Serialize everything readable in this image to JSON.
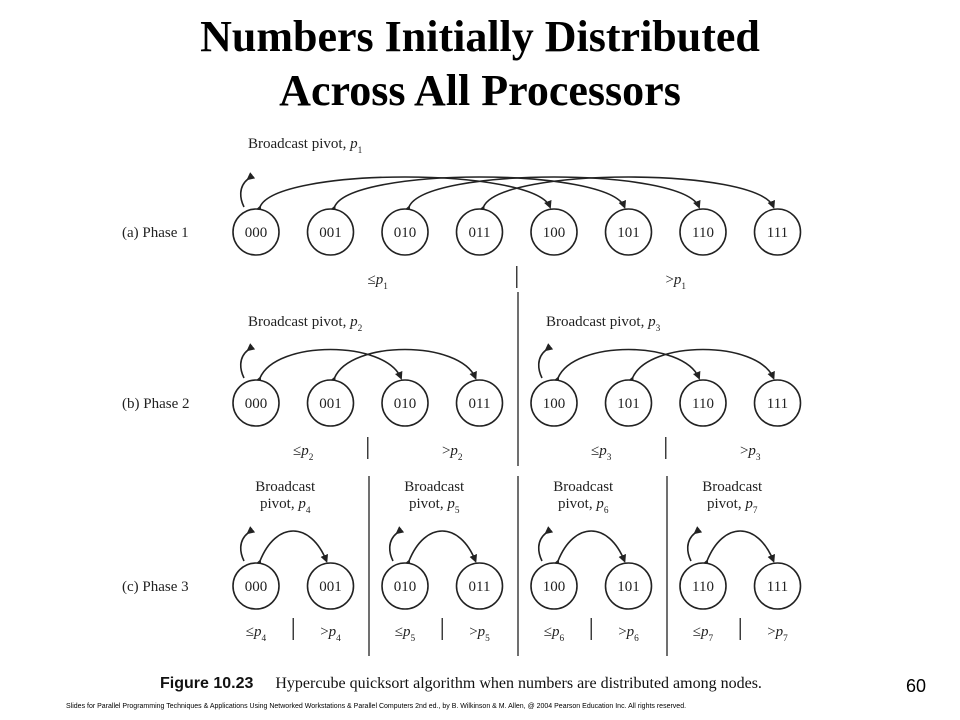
{
  "slide": {
    "title_line1": "Numbers Initially Distributed",
    "title_line2": "Across All Processors",
    "page_number": "60",
    "footer": "Slides for Parallel Programming Techniques & Applications Using Networked Workstations & Parallel Computers 2nd ed., by B. Wilkinson & M. Allen, @ 2004 Pearson Education Inc. All rights reserved."
  },
  "figure": {
    "label": "Figure 10.23",
    "caption": "Hypercube quicksort algorithm when numbers are distributed among nodes.",
    "phases": [
      {
        "label": "(a) Phase 1",
        "groups": [
          {
            "broadcast": "Broadcast pivot, p1",
            "nodes": [
              "000",
              "001",
              "010",
              "011",
              "100",
              "101",
              "110",
              "111"
            ],
            "pairs": [
              [
                0,
                4
              ],
              [
                1,
                5
              ],
              [
                2,
                6
              ],
              [
                3,
                7
              ]
            ],
            "le": "≤p1",
            "gt": ">p1"
          }
        ]
      },
      {
        "label": "(b) Phase 2",
        "groups": [
          {
            "broadcast": "Broadcast pivot, p2",
            "nodes": [
              "000",
              "001",
              "010",
              "011"
            ],
            "pairs": [
              [
                0,
                2
              ],
              [
                1,
                3
              ]
            ],
            "le": "≤p2",
            "gt": ">p2"
          },
          {
            "broadcast": "Broadcast pivot, p3",
            "nodes": [
              "100",
              "101",
              "110",
              "111"
            ],
            "pairs": [
              [
                0,
                2
              ],
              [
                1,
                3
              ]
            ],
            "le": "≤p3",
            "gt": ">p3"
          }
        ]
      },
      {
        "label": "(c) Phase 3",
        "groups": [
          {
            "broadcast": "Broadcast pivot, p4",
            "nodes": [
              "000",
              "001"
            ],
            "pairs": [
              [
                0,
                1
              ]
            ],
            "le": "≤p4",
            "gt": ">p4"
          },
          {
            "broadcast": "Broadcast pivot, p5",
            "nodes": [
              "010",
              "011"
            ],
            "pairs": [
              [
                0,
                1
              ]
            ],
            "le": "≤p5",
            "gt": ">p5"
          },
          {
            "broadcast": "Broadcast pivot, p6",
            "nodes": [
              "100",
              "101"
            ],
            "pairs": [
              [
                0,
                1
              ]
            ],
            "le": "≤p6",
            "gt": ">p6"
          },
          {
            "broadcast": "Broadcast pivot, p7",
            "nodes": [
              "110",
              "111"
            ],
            "pairs": [
              [
                0,
                1
              ]
            ],
            "le": "≤p7",
            "gt": ">p7"
          }
        ]
      }
    ]
  }
}
